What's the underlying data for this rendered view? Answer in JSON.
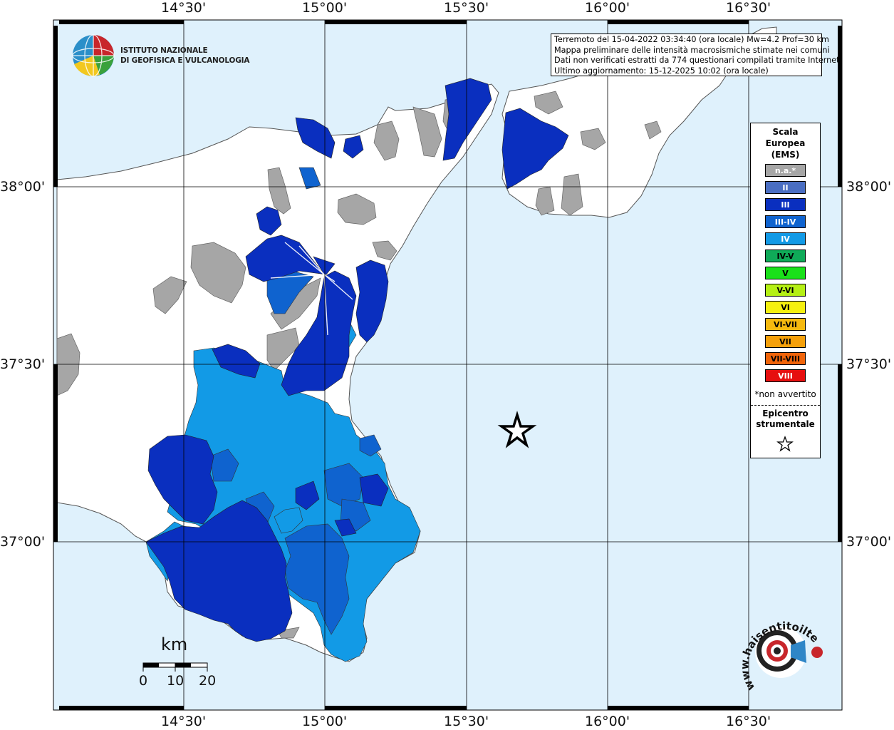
{
  "header": {
    "logo_line1": "ISTITUTO NAZIONALE",
    "logo_line2": "DI GEOFISICA E VULCANOLOGIA"
  },
  "info": {
    "line1": "Terremoto del 15-04-2022 03:34:40 (ora locale) Mw=4.2 Prof=30 km",
    "line2": "Mappa preliminare delle intensità macrosismiche stimate nei comuni",
    "line3": "Dati non verificati estratti da 774 questionari compilati tramite Internet.",
    "line4": "Ultimo aggiornamento: 15-12-2025 10:02 (ora locale)"
  },
  "axes": {
    "lon_labels": [
      "14°30'",
      "15°00'",
      "15°30'",
      "16°00'",
      "16°30'"
    ],
    "lat_labels": [
      "38°00'",
      "37°30'",
      "37°00'"
    ]
  },
  "legend": {
    "title_line1": "Scala",
    "title_line2": "Europea",
    "title_line3": "(EMS)",
    "items": [
      {
        "label": "n.a.*",
        "color": "#a6a6a6",
        "text_color": "#ffffff"
      },
      {
        "label": "II",
        "color": "#4a6ec2",
        "text_color": "#ffffff"
      },
      {
        "label": "III",
        "color": "#0a2fbf",
        "text_color": "#ffffff"
      },
      {
        "label": "III-IV",
        "color": "#0f63cf",
        "text_color": "#ffffff"
      },
      {
        "label": "IV",
        "color": "#129ae6",
        "text_color": "#ffffff"
      },
      {
        "label": "IV-V",
        "color": "#0faa58",
        "text_color": "#000000"
      },
      {
        "label": "V",
        "color": "#19e019",
        "text_color": "#000000"
      },
      {
        "label": "V-VI",
        "color": "#b5f014",
        "text_color": "#000000"
      },
      {
        "label": "VI",
        "color": "#f5f00f",
        "text_color": "#000000"
      },
      {
        "label": "VI-VII",
        "color": "#f5b90f",
        "text_color": "#000000"
      },
      {
        "label": "VII",
        "color": "#f5a00a",
        "text_color": "#000000"
      },
      {
        "label": "VII-VIII",
        "color": "#f0640a",
        "text_color": "#000000"
      },
      {
        "label": "VIII",
        "color": "#e60f0f",
        "text_color": "#ffffff"
      }
    ],
    "note": "*non avvertito",
    "epicenter_line1": "Epicentro",
    "epicenter_line2": "strumentale"
  },
  "scale_bar": {
    "unit": "km",
    "ticks": [
      "0",
      "10",
      "20"
    ]
  },
  "colors": {
    "sea": "#dff1fc",
    "land": "#ffffff",
    "na": "#a6a6a6",
    "ii": "#4a6ec2",
    "iii": "#0a2fbf",
    "iii_iv": "#0f63cf",
    "iv": "#129ae6"
  },
  "watermark": {
    "text": "www.haisentitoilterremoto.it"
  }
}
